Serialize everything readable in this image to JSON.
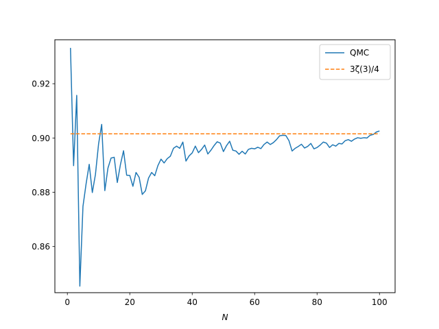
{
  "chart_data": {
    "type": "line",
    "title": "",
    "xlabel": "N",
    "ylabel": "",
    "xlim": [
      -4,
      105
    ],
    "ylim": [
      0.843,
      0.9362
    ],
    "xticks": [
      0,
      20,
      40,
      60,
      80,
      100
    ],
    "yticks": [
      0.86,
      0.88,
      0.9,
      0.92
    ],
    "ytick_labels": [
      "0.86",
      "0.88",
      "0.90",
      "0.92"
    ],
    "grid": false,
    "legend_position": "top-right",
    "series": [
      {
        "name": "QMC",
        "style": "solid",
        "color": "#1f77b4",
        "x": [
          1,
          2,
          3,
          4,
          5,
          6,
          7,
          8,
          9,
          10,
          11,
          12,
          13,
          14,
          15,
          16,
          17,
          18,
          19,
          20,
          21,
          22,
          23,
          24,
          25,
          26,
          27,
          28,
          29,
          30,
          31,
          32,
          33,
          34,
          35,
          36,
          37,
          38,
          39,
          40,
          41,
          42,
          43,
          44,
          45,
          46,
          47,
          48,
          49,
          50,
          51,
          52,
          53,
          54,
          55,
          56,
          57,
          58,
          59,
          60,
          61,
          62,
          63,
          64,
          65,
          66,
          67,
          68,
          69,
          70,
          71,
          72,
          73,
          74,
          75,
          76,
          77,
          78,
          79,
          80,
          81,
          82,
          83,
          84,
          85,
          86,
          87,
          88,
          89,
          90,
          91,
          92,
          93,
          94,
          95,
          96,
          97,
          98,
          99,
          100
        ],
        "values": [
          0.9332,
          0.8898,
          0.9157,
          0.8454,
          0.8748,
          0.8831,
          0.8903,
          0.8799,
          0.8866,
          0.8978,
          0.905,
          0.8806,
          0.8889,
          0.8926,
          0.8929,
          0.8836,
          0.8902,
          0.8953,
          0.8863,
          0.8862,
          0.8822,
          0.8873,
          0.8855,
          0.8792,
          0.8805,
          0.8852,
          0.8873,
          0.8861,
          0.8898,
          0.8922,
          0.8908,
          0.8924,
          0.8933,
          0.8962,
          0.897,
          0.8962,
          0.8985,
          0.8915,
          0.8934,
          0.8945,
          0.897,
          0.8946,
          0.8958,
          0.8974,
          0.8941,
          0.8955,
          0.8972,
          0.8986,
          0.8981,
          0.895,
          0.8972,
          0.8988,
          0.8955,
          0.8952,
          0.894,
          0.8951,
          0.8941,
          0.8958,
          0.8962,
          0.896,
          0.8966,
          0.8961,
          0.8976,
          0.8985,
          0.8976,
          0.8983,
          0.8994,
          0.9008,
          0.901,
          0.9009,
          0.899,
          0.8952,
          0.8962,
          0.8969,
          0.8977,
          0.8963,
          0.8969,
          0.898,
          0.896,
          0.8965,
          0.8974,
          0.8985,
          0.8981,
          0.8965,
          0.8975,
          0.897,
          0.898,
          0.8978,
          0.899,
          0.8994,
          0.8988,
          0.8996,
          0.9001,
          0.8999,
          0.9001,
          0.9,
          0.901,
          0.9013,
          0.9022,
          0.9026
        ]
      },
      {
        "name": "3ζ(3)/4",
        "style": "dashed",
        "color": "#ff7f0e",
        "x": [
          1,
          100
        ],
        "values": [
          0.901543,
          0.901543
        ]
      }
    ]
  }
}
